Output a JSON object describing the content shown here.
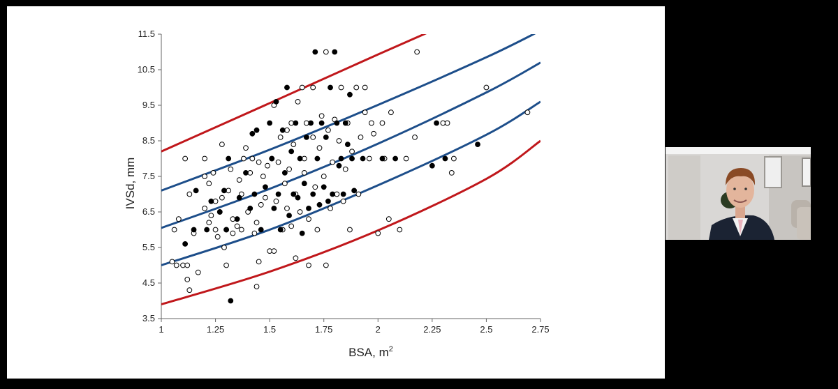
{
  "chart_data": {
    "type": "scatter",
    "title": "",
    "xlabel": "BSA, m",
    "xlabel_sup": "2",
    "ylabel": "IVSd, mm",
    "xlim": [
      1,
      2.75
    ],
    "ylim": [
      3.5,
      11.5
    ],
    "xticks": [
      "1",
      "1.25",
      "1.5",
      "1.75",
      "2",
      "2.25",
      "2.5",
      "2.75"
    ],
    "yticks": [
      "3.5",
      "4.5",
      "5.5",
      "6.5",
      "7.5",
      "8.5",
      "9.5",
      "10.5",
      "11.5"
    ],
    "grid": false,
    "colors": {
      "red_curve": "#c0171b",
      "blue_curve": "#1d4e8a",
      "marker": "#000000"
    },
    "curves": [
      {
        "color": "red",
        "points": [
          [
            1,
            8.2
          ],
          [
            1.5,
            9.56
          ],
          [
            2,
            10.93
          ],
          [
            2.25,
            11.6
          ]
        ]
      },
      {
        "color": "blue",
        "points": [
          [
            1,
            7.1
          ],
          [
            1.5,
            8.25
          ],
          [
            2,
            9.51
          ],
          [
            2.5,
            10.85
          ],
          [
            2.75,
            11.6
          ]
        ]
      },
      {
        "color": "blue",
        "points": [
          [
            1,
            6.05
          ],
          [
            1.5,
            7.15
          ],
          [
            2,
            8.42
          ],
          [
            2.5,
            9.86
          ],
          [
            2.75,
            10.7
          ]
        ]
      },
      {
        "color": "blue",
        "points": [
          [
            1,
            5.0
          ],
          [
            1.5,
            6.0
          ],
          [
            2,
            7.25
          ],
          [
            2.5,
            8.67
          ],
          [
            2.75,
            9.6
          ]
        ]
      },
      {
        "color": "red",
        "points": [
          [
            1,
            3.9
          ],
          [
            1.5,
            4.82
          ],
          [
            2,
            5.98
          ],
          [
            2.5,
            7.43
          ],
          [
            2.75,
            8.5
          ]
        ]
      }
    ],
    "series": [
      {
        "marker": "open-circle",
        "points": [
          [
            1.05,
            5.1
          ],
          [
            1.07,
            5.0
          ],
          [
            1.1,
            5.0
          ],
          [
            1.12,
            4.6
          ],
          [
            1.13,
            4.3
          ],
          [
            1.12,
            5.0
          ],
          [
            1.06,
            6.0
          ],
          [
            1.08,
            6.3
          ],
          [
            1.11,
            8.0
          ],
          [
            1.13,
            7.0
          ],
          [
            1.15,
            5.9
          ],
          [
            1.17,
            4.8
          ],
          [
            1.2,
            6.6
          ],
          [
            1.2,
            7.5
          ],
          [
            1.2,
            8.0
          ],
          [
            1.22,
            6.2
          ],
          [
            1.22,
            7.3
          ],
          [
            1.23,
            6.4
          ],
          [
            1.24,
            7.6
          ],
          [
            1.25,
            6.8
          ],
          [
            1.25,
            6.0
          ],
          [
            1.26,
            5.8
          ],
          [
            1.27,
            6.5
          ],
          [
            1.28,
            8.4
          ],
          [
            1.28,
            6.9
          ],
          [
            1.29,
            5.5
          ],
          [
            1.3,
            5.0
          ],
          [
            1.3,
            6.0
          ],
          [
            1.31,
            7.1
          ],
          [
            1.32,
            7.7
          ],
          [
            1.33,
            5.9
          ],
          [
            1.33,
            6.3
          ],
          [
            1.35,
            6.1
          ],
          [
            1.36,
            7.4
          ],
          [
            1.37,
            7.0
          ],
          [
            1.37,
            6.0
          ],
          [
            1.38,
            8.0
          ],
          [
            1.39,
            8.3
          ],
          [
            1.4,
            6.5
          ],
          [
            1.41,
            7.6
          ],
          [
            1.42,
            8.0
          ],
          [
            1.43,
            5.9
          ],
          [
            1.44,
            6.2
          ],
          [
            1.45,
            5.1
          ],
          [
            1.45,
            7.9
          ],
          [
            1.44,
            4.4
          ],
          [
            1.46,
            6.7
          ],
          [
            1.47,
            7.5
          ],
          [
            1.48,
            6.9
          ],
          [
            1.49,
            7.8
          ],
          [
            1.5,
            5.4
          ],
          [
            1.51,
            8.0
          ],
          [
            1.52,
            9.5
          ],
          [
            1.52,
            5.4
          ],
          [
            1.53,
            6.8
          ],
          [
            1.54,
            7.9
          ],
          [
            1.55,
            8.6
          ],
          [
            1.56,
            6.0
          ],
          [
            1.57,
            7.3
          ],
          [
            1.58,
            8.8
          ],
          [
            1.58,
            6.6
          ],
          [
            1.59,
            7.7
          ],
          [
            1.6,
            9.0
          ],
          [
            1.6,
            6.1
          ],
          [
            1.61,
            8.4
          ],
          [
            1.62,
            7.0
          ],
          [
            1.62,
            5.2
          ],
          [
            1.63,
            9.6
          ],
          [
            1.64,
            6.5
          ],
          [
            1.65,
            10.0
          ],
          [
            1.66,
            7.6
          ],
          [
            1.66,
            8.0
          ],
          [
            1.67,
            9.0
          ],
          [
            1.68,
            6.3
          ],
          [
            1.68,
            5.0
          ],
          [
            1.7,
            8.6
          ],
          [
            1.7,
            10.0
          ],
          [
            1.71,
            7.2
          ],
          [
            1.72,
            6.0
          ],
          [
            1.73,
            8.3
          ],
          [
            1.74,
            9.2
          ],
          [
            1.75,
            7.5
          ],
          [
            1.76,
            5.0
          ],
          [
            1.76,
            11.0
          ],
          [
            1.77,
            8.8
          ],
          [
            1.78,
            6.6
          ],
          [
            1.79,
            7.9
          ],
          [
            1.8,
            9.1
          ],
          [
            1.81,
            7.0
          ],
          [
            1.82,
            8.5
          ],
          [
            1.83,
            10.0
          ],
          [
            1.84,
            6.8
          ],
          [
            1.85,
            7.7
          ],
          [
            1.86,
            9.0
          ],
          [
            1.87,
            6.0
          ],
          [
            1.88,
            8.2
          ],
          [
            1.9,
            10.0
          ],
          [
            1.91,
            7.0
          ],
          [
            1.92,
            8.6
          ],
          [
            1.94,
            10.0
          ],
          [
            1.94,
            9.3
          ],
          [
            1.96,
            8.0
          ],
          [
            1.97,
            9.0
          ],
          [
            1.98,
            8.7
          ],
          [
            2.0,
            5.9
          ],
          [
            2.02,
            9.0
          ],
          [
            2.03,
            8.0
          ],
          [
            2.05,
            6.3
          ],
          [
            2.06,
            9.3
          ],
          [
            2.1,
            6.0
          ],
          [
            2.13,
            8.0
          ],
          [
            2.17,
            8.6
          ],
          [
            2.18,
            11.0
          ],
          [
            2.3,
            9.0
          ],
          [
            2.32,
            9.0
          ],
          [
            2.34,
            7.6
          ],
          [
            2.35,
            8.0
          ],
          [
            2.5,
            10.0
          ],
          [
            2.69,
            9.3
          ]
        ]
      },
      {
        "marker": "filled-circle",
        "points": [
          [
            1.11,
            5.6
          ],
          [
            1.15,
            6.0
          ],
          [
            1.16,
            7.1
          ],
          [
            1.21,
            6.0
          ],
          [
            1.23,
            6.8
          ],
          [
            1.27,
            6.5
          ],
          [
            1.29,
            7.1
          ],
          [
            1.3,
            6.0
          ],
          [
            1.31,
            8.0
          ],
          [
            1.32,
            4.0
          ],
          [
            1.35,
            6.3
          ],
          [
            1.36,
            6.9
          ],
          [
            1.39,
            7.6
          ],
          [
            1.41,
            6.6
          ],
          [
            1.42,
            8.7
          ],
          [
            1.43,
            7.0
          ],
          [
            1.44,
            8.8
          ],
          [
            1.46,
            6.0
          ],
          [
            1.48,
            7.2
          ],
          [
            1.5,
            9.0
          ],
          [
            1.51,
            8.0
          ],
          [
            1.52,
            6.6
          ],
          [
            1.53,
            9.6
          ],
          [
            1.54,
            7.0
          ],
          [
            1.55,
            6.0
          ],
          [
            1.56,
            8.8
          ],
          [
            1.57,
            7.6
          ],
          [
            1.58,
            10.0
          ],
          [
            1.59,
            6.4
          ],
          [
            1.6,
            8.2
          ],
          [
            1.61,
            7.0
          ],
          [
            1.62,
            9.0
          ],
          [
            1.63,
            6.9
          ],
          [
            1.64,
            8.0
          ],
          [
            1.65,
            5.9
          ],
          [
            1.66,
            7.3
          ],
          [
            1.67,
            8.6
          ],
          [
            1.68,
            6.6
          ],
          [
            1.69,
            9.0
          ],
          [
            1.7,
            7.0
          ],
          [
            1.71,
            11.0
          ],
          [
            1.72,
            8.0
          ],
          [
            1.73,
            6.7
          ],
          [
            1.74,
            9.0
          ],
          [
            1.75,
            7.2
          ],
          [
            1.76,
            8.6
          ],
          [
            1.77,
            6.8
          ],
          [
            1.78,
            10.0
          ],
          [
            1.79,
            7.0
          ],
          [
            1.8,
            11.0
          ],
          [
            1.81,
            9.0
          ],
          [
            1.82,
            7.8
          ],
          [
            1.83,
            8.0
          ],
          [
            1.84,
            7.0
          ],
          [
            1.85,
            9.0
          ],
          [
            1.86,
            8.4
          ],
          [
            1.87,
            9.8
          ],
          [
            1.88,
            8.0
          ],
          [
            1.89,
            7.1
          ],
          [
            1.93,
            8.0
          ],
          [
            2.02,
            8.0
          ],
          [
            2.08,
            8.0
          ],
          [
            2.25,
            7.8
          ],
          [
            2.27,
            9.0
          ],
          [
            2.31,
            8.0
          ],
          [
            2.46,
            8.4
          ]
        ]
      }
    ]
  },
  "webcam": {
    "colors": {
      "wall": "#d9d7d5",
      "suit": "#1b2333",
      "shirt": "#f2f2f2",
      "tie": "#e9b3bd",
      "hair": "#8a4a25",
      "skin": "#e3b59c",
      "sofa": "#c9c2ba"
    }
  }
}
